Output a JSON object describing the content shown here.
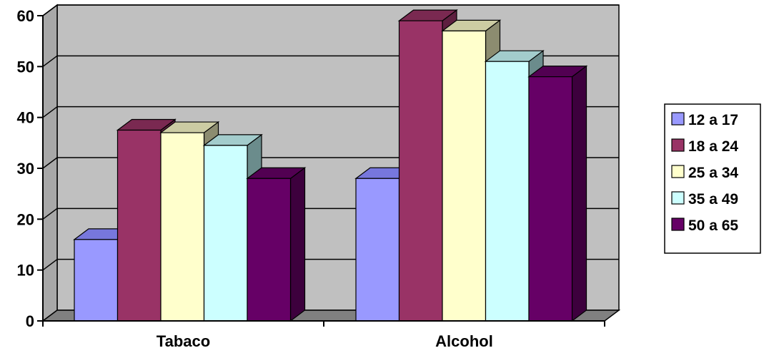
{
  "chart_data": {
    "type": "bar",
    "style": "3d-clustered-column",
    "categories": [
      "Tabaco",
      "Alcohol"
    ],
    "series": [
      {
        "name": "12 a 17",
        "values": [
          16,
          28
        ],
        "color": "#9999ff",
        "top_color": "#7777dd",
        "side_color": "#6666bb"
      },
      {
        "name": "18 a 24",
        "values": [
          37.5,
          59
        ],
        "color": "#993366",
        "top_color": "#7a2951",
        "side_color": "#5e1f3f"
      },
      {
        "name": "25 a 34",
        "values": [
          37,
          57
        ],
        "color": "#ffffcc",
        "top_color": "#cccca3",
        "side_color": "#8c8c70"
      },
      {
        "name": "35 a 49",
        "values": [
          34.5,
          51
        ],
        "color": "#ccffff",
        "top_color": "#a3cccc",
        "side_color": "#6b8c8c"
      },
      {
        "name": "50 a 65",
        "values": [
          28,
          48
        ],
        "color": "#660066",
        "top_color": "#520052",
        "side_color": "#3d003d"
      }
    ],
    "title": "",
    "xlabel": "",
    "ylabel": "",
    "ylim": [
      0,
      60
    ],
    "yticks": [
      "0",
      "10",
      "20",
      "30",
      "40",
      "50",
      "60"
    ],
    "grid": true,
    "wall_color": "#c0c0c0",
    "floor_color": "#808080",
    "legend_position": "right"
  }
}
